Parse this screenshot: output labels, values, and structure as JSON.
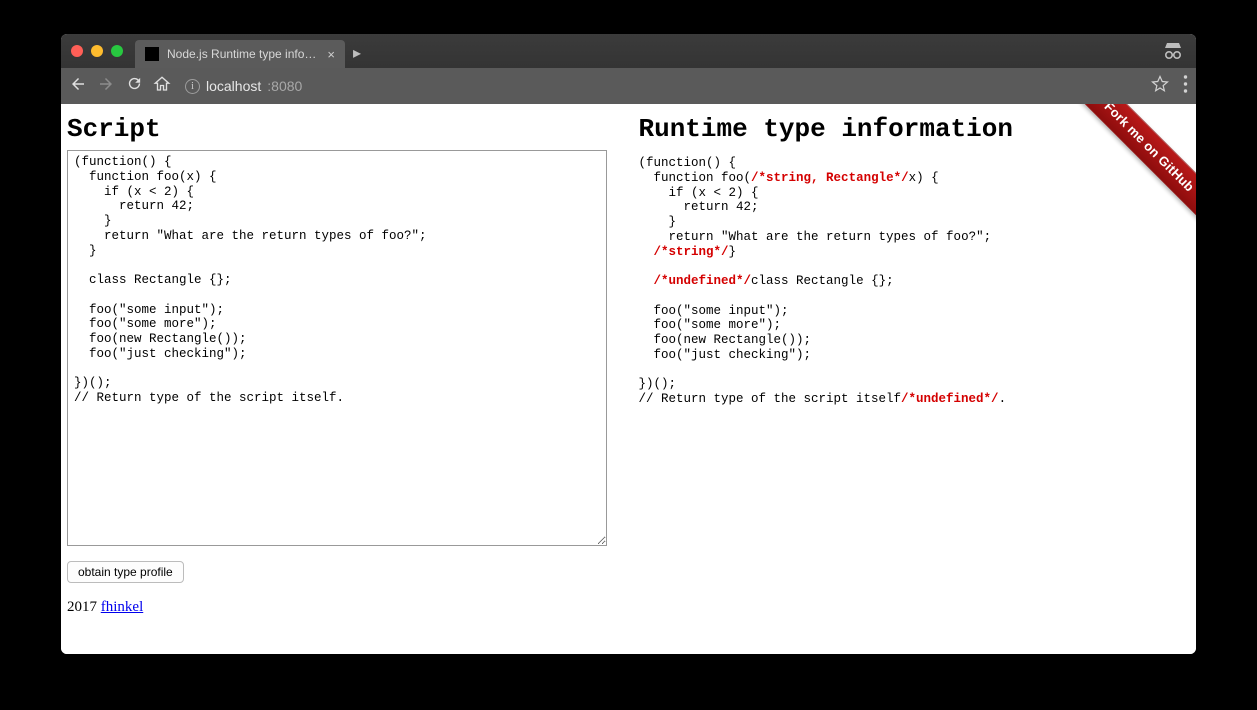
{
  "browser": {
    "tab_title": "Node.js Runtime type informat",
    "url_host": "localhost",
    "url_port": ":8080"
  },
  "page": {
    "left_heading": "Script",
    "right_heading": "Runtime type information",
    "ribbon_text": "Fork me on GitHub",
    "button_label": "obtain type profile",
    "script_source": "(function() {\n  function foo(x) {\n    if (x < 2) {\n      return 42;\n    }\n    return \"What are the return types of foo?\";\n  }\n\n  class Rectangle {};\n\n  foo(\"some input\");\n  foo(\"some more\");\n  foo(new Rectangle());\n  foo(\"just checking\");\n\n})();\n// Return type of the script itself.",
    "annotated": {
      "segments": [
        {
          "t": "(function() {\n  function foo("
        },
        {
          "t": "/*string, Rectangle*/",
          "ann": true
        },
        {
          "t": "x) {\n    if (x < 2) {\n      return 42;\n    }\n    return \"What are the return types of foo?\";\n  "
        },
        {
          "t": "/*string*/",
          "ann": true
        },
        {
          "t": "}\n\n  "
        },
        {
          "t": "/*undefined*/",
          "ann": true
        },
        {
          "t": "class Rectangle {};\n\n  foo(\"some input\");\n  foo(\"some more\");\n  foo(new Rectangle());\n  foo(\"just checking\");\n\n})();\n// Return type of the script itself"
        },
        {
          "t": "/*undefined*/",
          "ann": true
        },
        {
          "t": "."
        }
      ]
    },
    "footer_year": "2017 ",
    "footer_link_text": "fhinkel"
  }
}
